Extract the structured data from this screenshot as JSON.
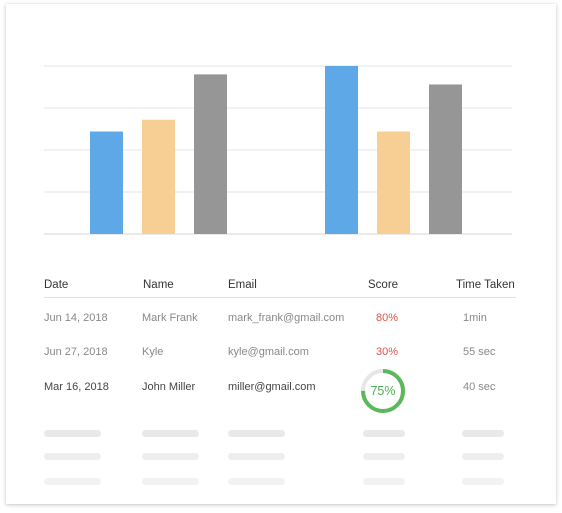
{
  "chart_data": {
    "type": "bar",
    "categories": [
      "",
      ""
    ],
    "series": [
      {
        "values": [
          61,
          100
        ],
        "color": "#5fa8e8"
      },
      {
        "values": [
          68,
          61
        ],
        "color": "#f7cf94"
      },
      {
        "values": [
          95,
          89
        ],
        "color": "#969696"
      }
    ],
    "ylim": [
      0,
      100
    ],
    "grid": true,
    "gridlines": 5,
    "xlabel": "",
    "ylabel": ""
  },
  "table": {
    "headers": [
      "Date",
      "Name",
      "Email",
      "Score",
      "Time Taken"
    ],
    "rows": [
      {
        "date": "Jun 14, 2018",
        "name": "Mark Frank",
        "email": "mark_frank@gmail.com",
        "score": "80%",
        "time": "1min"
      },
      {
        "date": "Jun 27, 2018",
        "name": "Kyle",
        "email": "kyle@gmail.com",
        "score": "30%",
        "time": "55 sec"
      },
      {
        "date": "Mar 16, 2018",
        "name": "John Miller",
        "email": "miller@gmail.com",
        "score": "75%",
        "time": "40 sec",
        "score_fraction": 0.75
      }
    ],
    "placeholder_rows": 3
  },
  "colors": {
    "score_low": "#e0534a",
    "score_ring": "#5cb85c",
    "ring_track": "#e6e6e6",
    "placeholder": "#ececec"
  }
}
